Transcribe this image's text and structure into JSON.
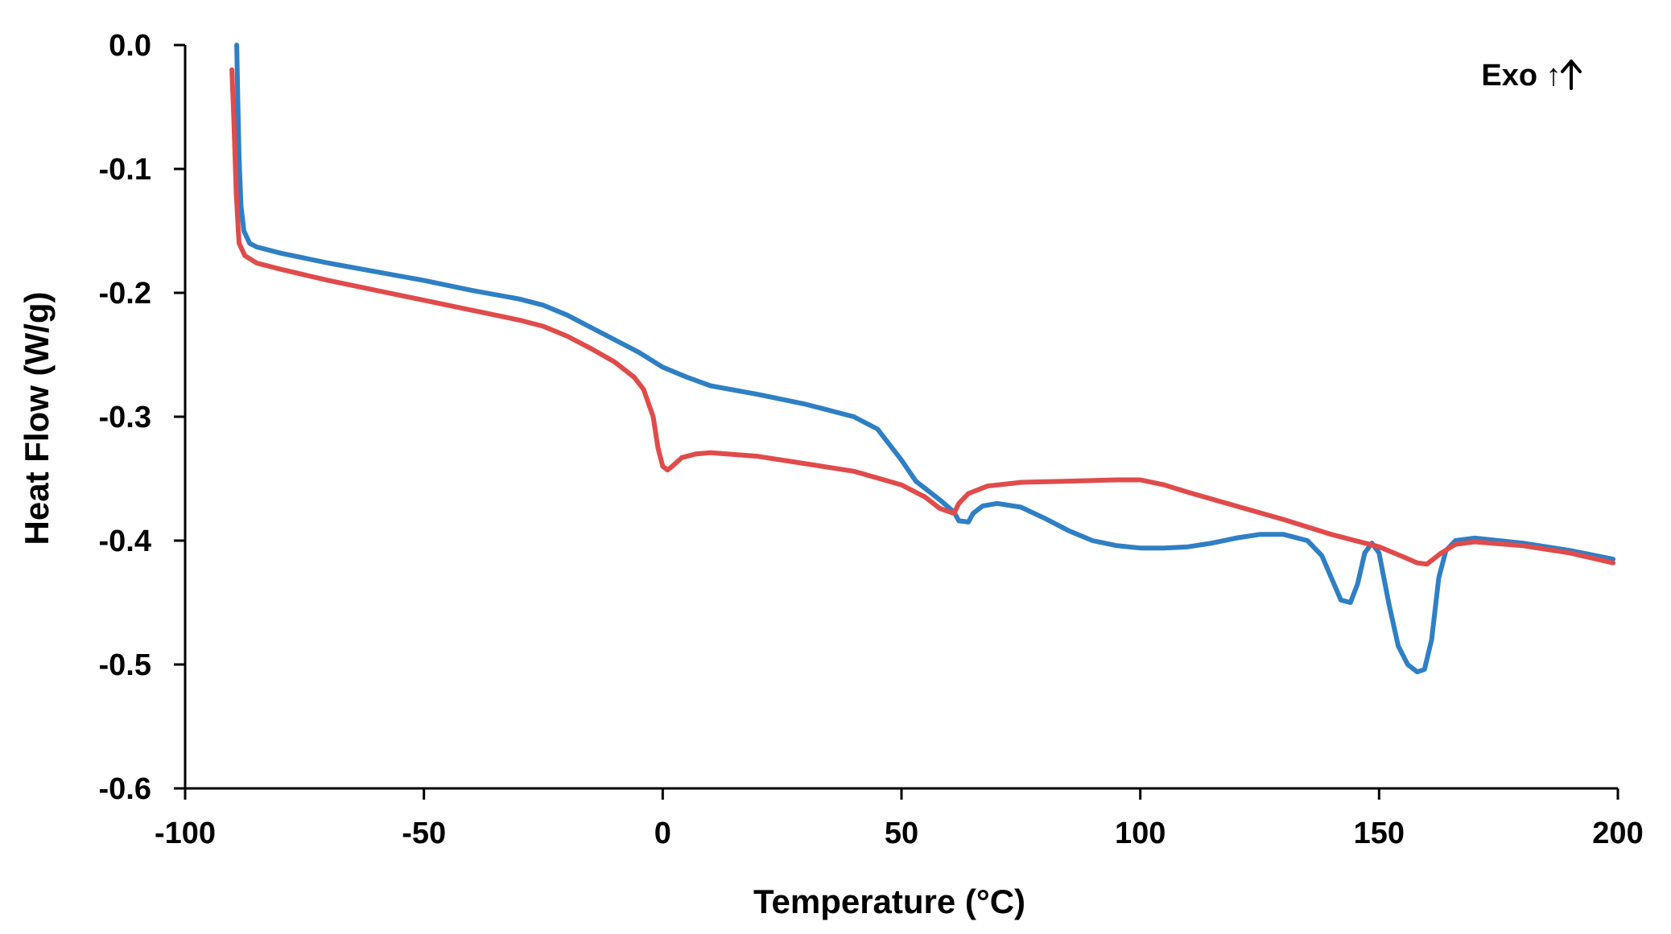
{
  "chart_data": {
    "type": "line",
    "title": "",
    "xlabel": "Temperature (°C)",
    "ylabel": "Heat Flow (W/g)",
    "xlim": [
      -100,
      200
    ],
    "ylim": [
      -0.6,
      0.0
    ],
    "x_ticks": [
      -100,
      -50,
      0,
      50,
      100,
      150,
      200
    ],
    "x_tick_labels": [
      "-100",
      "-50",
      "0",
      "50",
      "100",
      "150",
      "200"
    ],
    "y_ticks": [
      0.0,
      -0.1,
      -0.2,
      -0.3,
      -0.4,
      -0.5,
      -0.6
    ],
    "y_tick_labels": [
      "0.0",
      "-0.1",
      "-0.2",
      "-0.3",
      "-0.4",
      "-0.5",
      "-0.6"
    ],
    "grid": false,
    "legend": null,
    "annotation": "Exo ↑",
    "series": [
      {
        "name": "blue",
        "color": "#2f7fc4",
        "points": [
          [
            -89.2,
            0.0
          ],
          [
            -89.0,
            -0.04
          ],
          [
            -88.7,
            -0.09
          ],
          [
            -88.3,
            -0.13
          ],
          [
            -87.7,
            -0.15
          ],
          [
            -86.5,
            -0.16
          ],
          [
            -85,
            -0.163
          ],
          [
            -80,
            -0.168
          ],
          [
            -70,
            -0.176
          ],
          [
            -60,
            -0.183
          ],
          [
            -50,
            -0.19
          ],
          [
            -40,
            -0.198
          ],
          [
            -30,
            -0.205
          ],
          [
            -25,
            -0.21
          ],
          [
            -20,
            -0.218
          ],
          [
            -15,
            -0.228
          ],
          [
            -10,
            -0.238
          ],
          [
            -5,
            -0.248
          ],
          [
            0,
            -0.26
          ],
          [
            5,
            -0.268
          ],
          [
            10,
            -0.275
          ],
          [
            20,
            -0.282
          ],
          [
            30,
            -0.29
          ],
          [
            40,
            -0.3
          ],
          [
            45,
            -0.31
          ],
          [
            50,
            -0.335
          ],
          [
            53,
            -0.352
          ],
          [
            58,
            -0.367
          ],
          [
            61,
            -0.377
          ],
          [
            62,
            -0.384
          ],
          [
            64,
            -0.385
          ],
          [
            65,
            -0.378
          ],
          [
            67,
            -0.372
          ],
          [
            70,
            -0.37
          ],
          [
            75,
            -0.373
          ],
          [
            80,
            -0.382
          ],
          [
            85,
            -0.392
          ],
          [
            90,
            -0.4
          ],
          [
            95,
            -0.404
          ],
          [
            100,
            -0.406
          ],
          [
            105,
            -0.406
          ],
          [
            110,
            -0.405
          ],
          [
            115,
            -0.402
          ],
          [
            120,
            -0.398
          ],
          [
            125,
            -0.395
          ],
          [
            130,
            -0.395
          ],
          [
            135,
            -0.4
          ],
          [
            138,
            -0.412
          ],
          [
            140,
            -0.43
          ],
          [
            142,
            -0.448
          ],
          [
            144,
            -0.45
          ],
          [
            145.5,
            -0.435
          ],
          [
            147,
            -0.41
          ],
          [
            148.5,
            -0.402
          ],
          [
            150,
            -0.41
          ],
          [
            152,
            -0.45
          ],
          [
            154,
            -0.485
          ],
          [
            156,
            -0.5
          ],
          [
            158,
            -0.506
          ],
          [
            159.5,
            -0.504
          ],
          [
            161,
            -0.48
          ],
          [
            162.5,
            -0.43
          ],
          [
            164,
            -0.408
          ],
          [
            166,
            -0.4
          ],
          [
            170,
            -0.398
          ],
          [
            180,
            -0.402
          ],
          [
            190,
            -0.408
          ],
          [
            199,
            -0.415
          ]
        ]
      },
      {
        "name": "red",
        "color": "#e04b4b",
        "points": [
          [
            -90.2,
            -0.02
          ],
          [
            -89.8,
            -0.06
          ],
          [
            -89.3,
            -0.12
          ],
          [
            -88.7,
            -0.16
          ],
          [
            -87.5,
            -0.17
          ],
          [
            -85,
            -0.176
          ],
          [
            -80,
            -0.181
          ],
          [
            -70,
            -0.19
          ],
          [
            -60,
            -0.198
          ],
          [
            -50,
            -0.206
          ],
          [
            -40,
            -0.214
          ],
          [
            -30,
            -0.222
          ],
          [
            -25,
            -0.227
          ],
          [
            -20,
            -0.235
          ],
          [
            -15,
            -0.245
          ],
          [
            -10,
            -0.256
          ],
          [
            -6,
            -0.268
          ],
          [
            -4,
            -0.278
          ],
          [
            -2,
            -0.3
          ],
          [
            -1,
            -0.325
          ],
          [
            0,
            -0.34
          ],
          [
            1,
            -0.343
          ],
          [
            2,
            -0.34
          ],
          [
            4,
            -0.333
          ],
          [
            7,
            -0.33
          ],
          [
            10,
            -0.329
          ],
          [
            20,
            -0.332
          ],
          [
            30,
            -0.338
          ],
          [
            40,
            -0.344
          ],
          [
            50,
            -0.355
          ],
          [
            55,
            -0.365
          ],
          [
            58,
            -0.374
          ],
          [
            61,
            -0.378
          ],
          [
            62,
            -0.37
          ],
          [
            64,
            -0.362
          ],
          [
            68,
            -0.356
          ],
          [
            75,
            -0.353
          ],
          [
            85,
            -0.352
          ],
          [
            95,
            -0.351
          ],
          [
            100,
            -0.351
          ],
          [
            105,
            -0.355
          ],
          [
            110,
            -0.361
          ],
          [
            120,
            -0.372
          ],
          [
            130,
            -0.383
          ],
          [
            140,
            -0.395
          ],
          [
            150,
            -0.405
          ],
          [
            155,
            -0.413
          ],
          [
            158,
            -0.418
          ],
          [
            160,
            -0.419
          ],
          [
            163,
            -0.41
          ],
          [
            166,
            -0.403
          ],
          [
            170,
            -0.401
          ],
          [
            180,
            -0.404
          ],
          [
            190,
            -0.41
          ],
          [
            199,
            -0.418
          ]
        ]
      }
    ]
  }
}
